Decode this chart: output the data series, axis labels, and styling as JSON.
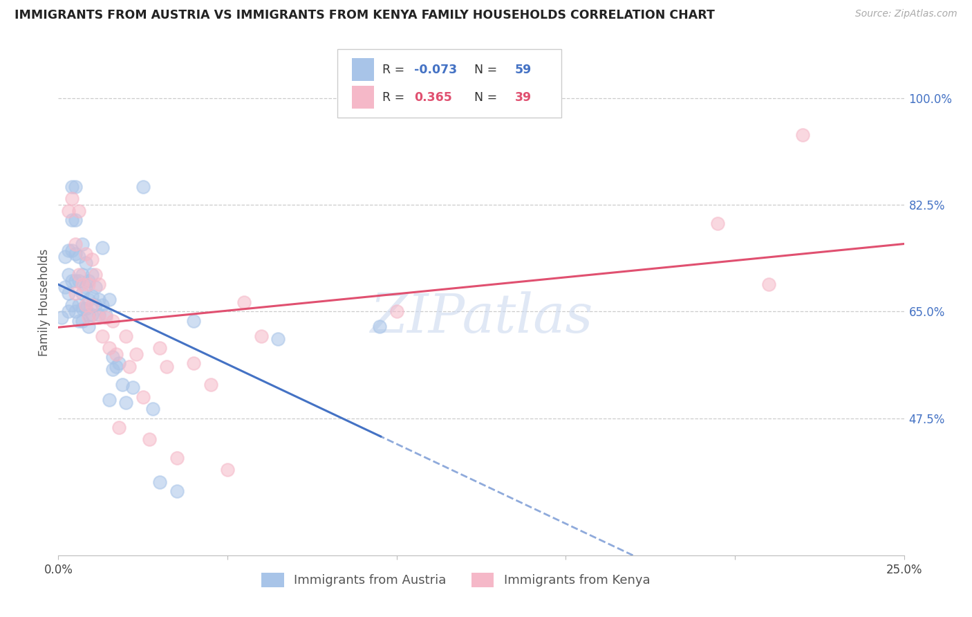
{
  "title": "IMMIGRANTS FROM AUSTRIA VS IMMIGRANTS FROM KENYA FAMILY HOUSEHOLDS CORRELATION CHART",
  "source": "Source: ZipAtlas.com",
  "ylabel": "Family Households",
  "xlim": [
    0.0,
    0.25
  ],
  "ylim": [
    0.25,
    1.08
  ],
  "x_ticks": [
    0.0,
    0.05,
    0.1,
    0.15,
    0.2,
    0.25
  ],
  "x_tick_labels": [
    "0.0%",
    "",
    "",
    "",
    "",
    "25.0%"
  ],
  "y_tick_labels_right": [
    "47.5%",
    "65.0%",
    "82.5%",
    "100.0%"
  ],
  "y_ticks_right": [
    0.475,
    0.65,
    0.825,
    1.0
  ],
  "austria_R": "-0.073",
  "austria_N": "59",
  "kenya_R": "0.365",
  "kenya_N": "39",
  "austria_color": "#a8c4e8",
  "kenya_color": "#f5b8c8",
  "austria_line_color": "#4472c4",
  "kenya_line_color": "#e05070",
  "watermark": "ZIPatlas",
  "legend_austria": "Immigrants from Austria",
  "legend_kenya": "Immigrants from Kenya",
  "austria_x": [
    0.001,
    0.002,
    0.002,
    0.003,
    0.003,
    0.003,
    0.003,
    0.004,
    0.004,
    0.004,
    0.004,
    0.004,
    0.005,
    0.005,
    0.005,
    0.005,
    0.005,
    0.006,
    0.006,
    0.006,
    0.006,
    0.007,
    0.007,
    0.007,
    0.007,
    0.007,
    0.008,
    0.008,
    0.008,
    0.009,
    0.009,
    0.009,
    0.009,
    0.01,
    0.01,
    0.01,
    0.011,
    0.011,
    0.012,
    0.012,
    0.013,
    0.013,
    0.014,
    0.015,
    0.015,
    0.016,
    0.016,
    0.017,
    0.018,
    0.019,
    0.02,
    0.022,
    0.025,
    0.028,
    0.03,
    0.035,
    0.04,
    0.065,
    0.095
  ],
  "austria_y": [
    0.64,
    0.69,
    0.74,
    0.75,
    0.71,
    0.68,
    0.65,
    0.855,
    0.8,
    0.75,
    0.7,
    0.66,
    0.855,
    0.8,
    0.745,
    0.7,
    0.65,
    0.74,
    0.7,
    0.66,
    0.635,
    0.76,
    0.71,
    0.68,
    0.655,
    0.635,
    0.73,
    0.69,
    0.655,
    0.7,
    0.67,
    0.645,
    0.625,
    0.71,
    0.675,
    0.645,
    0.69,
    0.66,
    0.67,
    0.645,
    0.755,
    0.66,
    0.645,
    0.67,
    0.505,
    0.575,
    0.555,
    0.56,
    0.565,
    0.53,
    0.5,
    0.525,
    0.855,
    0.49,
    0.37,
    0.355,
    0.635,
    0.605,
    0.625
  ],
  "kenya_x": [
    0.003,
    0.004,
    0.005,
    0.005,
    0.006,
    0.006,
    0.007,
    0.008,
    0.008,
    0.009,
    0.009,
    0.01,
    0.01,
    0.011,
    0.012,
    0.012,
    0.013,
    0.014,
    0.015,
    0.016,
    0.017,
    0.018,
    0.02,
    0.021,
    0.023,
    0.025,
    0.027,
    0.03,
    0.032,
    0.035,
    0.04,
    0.045,
    0.05,
    0.055,
    0.06,
    0.1,
    0.195,
    0.21,
    0.22
  ],
  "kenya_y": [
    0.815,
    0.835,
    0.76,
    0.68,
    0.815,
    0.71,
    0.695,
    0.745,
    0.66,
    0.695,
    0.64,
    0.735,
    0.66,
    0.71,
    0.695,
    0.64,
    0.61,
    0.64,
    0.59,
    0.635,
    0.58,
    0.46,
    0.61,
    0.56,
    0.58,
    0.51,
    0.44,
    0.59,
    0.56,
    0.41,
    0.565,
    0.53,
    0.39,
    0.665,
    0.61,
    0.65,
    0.795,
    0.695,
    0.94
  ]
}
